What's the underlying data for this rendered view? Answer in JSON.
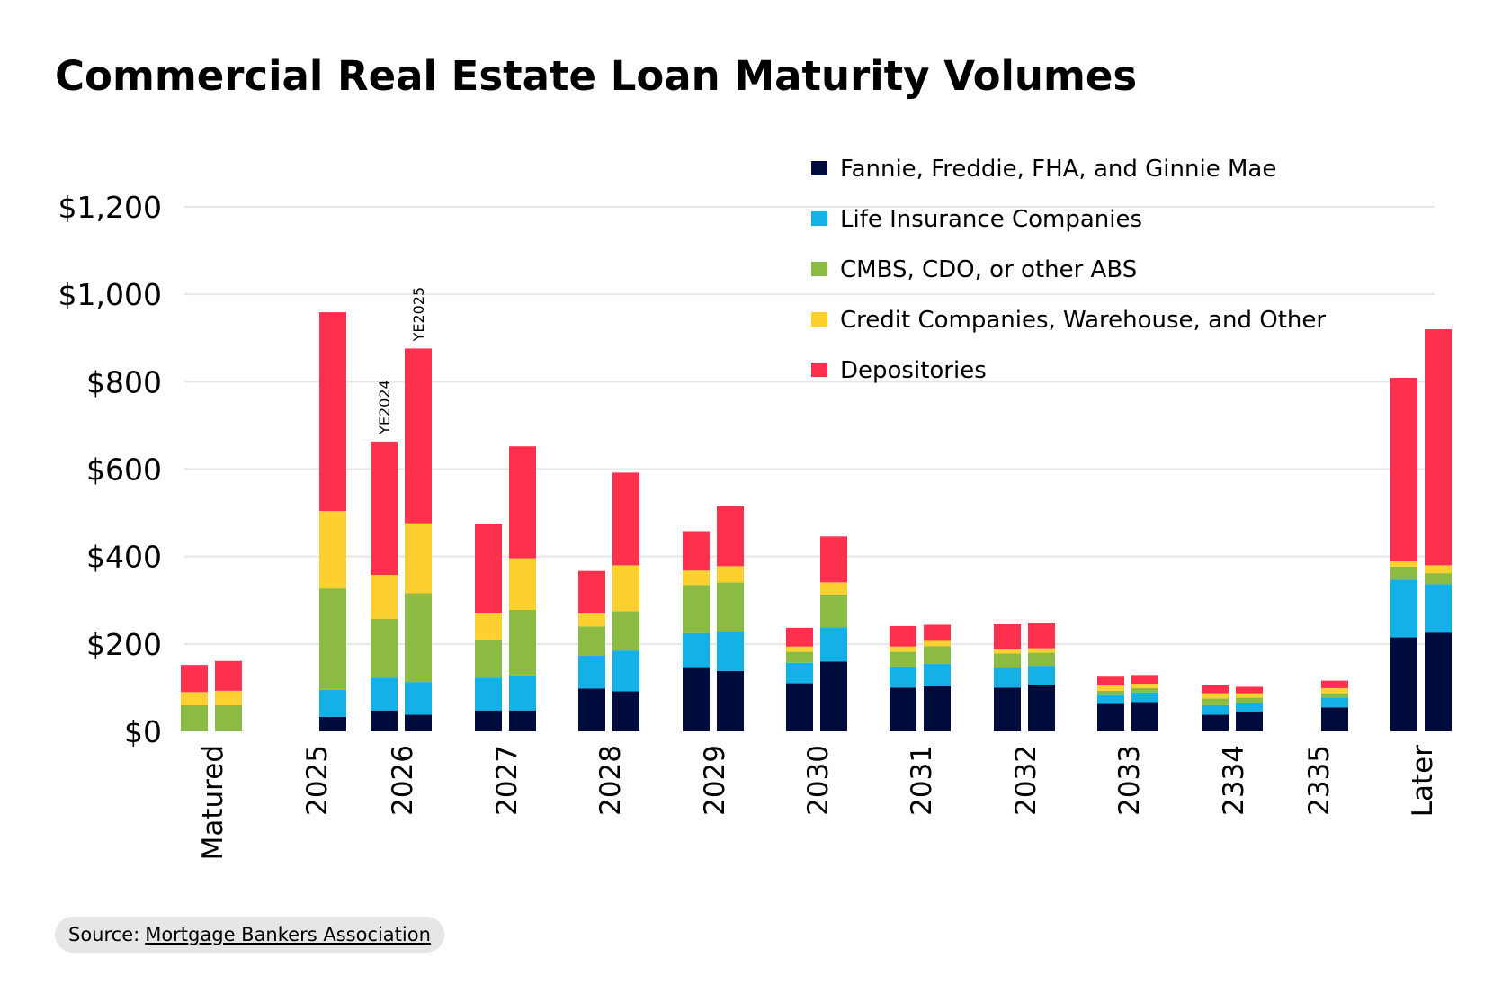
{
  "chart_data": {
    "type": "bar",
    "stacked": true,
    "title": "Commercial Real Estate Loan Maturity Volumes",
    "categories": [
      "Matured",
      "2025",
      "2026",
      "2027",
      "2028",
      "2029",
      "2030",
      "2031",
      "2032",
      "2033",
      "2334",
      "2335",
      "Later"
    ],
    "bar_groups": [
      "YE2024",
      "YE2025"
    ],
    "ylim": [
      0,
      1200
    ],
    "yticks": [
      0,
      200,
      400,
      600,
      800,
      1000,
      1200
    ],
    "ytick_labels": [
      "$0",
      "$200",
      "$400",
      "$600",
      "$800",
      "$1,000",
      "$1,200"
    ],
    "grid": true,
    "legend_position": "top-right",
    "series": [
      {
        "name": "Fannie, Freddie, FHA, and Ginnie Mae",
        "color": "#000c3b",
        "ye2024": [
          0,
          0,
          48,
          48,
          98,
          145,
          110,
          100,
          100,
          63,
          38,
          0,
          215
        ],
        "ye2025": [
          0,
          33,
          38,
          48,
          92,
          138,
          160,
          103,
          107,
          67,
          45,
          55,
          226
        ]
      },
      {
        "name": "Life Insurance Companies",
        "color": "#14b1e7",
        "ye2024": [
          0,
          0,
          75,
          75,
          75,
          80,
          47,
          47,
          45,
          20,
          22,
          0,
          132
        ],
        "ye2025": [
          0,
          62,
          75,
          80,
          93,
          90,
          78,
          52,
          43,
          22,
          20,
          22,
          111
        ]
      },
      {
        "name": "CMBS, CDO, or other ABS",
        "color": "#8cbb43",
        "ye2024": [
          60,
          0,
          135,
          85,
          67,
          110,
          25,
          35,
          33,
          10,
          15,
          0,
          30
        ],
        "ye2025": [
          60,
          232,
          203,
          150,
          90,
          113,
          75,
          40,
          30,
          10,
          12,
          10,
          25
        ]
      },
      {
        "name": "Credit Companies, Warehouse, and Other",
        "color": "#fcd02e",
        "ye2024": [
          30,
          0,
          100,
          62,
          30,
          33,
          12,
          12,
          10,
          12,
          12,
          0,
          12
        ],
        "ye2025": [
          33,
          177,
          160,
          118,
          105,
          37,
          28,
          12,
          10,
          10,
          10,
          12,
          18
        ]
      },
      {
        "name": "Depositories",
        "color": "#fd304e",
        "ye2024": [
          62,
          0,
          305,
          205,
          97,
          90,
          43,
          47,
          57,
          20,
          18,
          0,
          420
        ],
        "ye2025": [
          68,
          455,
          400,
          256,
          212,
          137,
          105,
          37,
          57,
          20,
          15,
          17,
          540
        ]
      }
    ],
    "annotations": [
      {
        "text": "YE2024",
        "category": "2026",
        "group": "YE2024"
      },
      {
        "text": "YE2025",
        "category": "2026",
        "group": "YE2025"
      }
    ]
  },
  "source": {
    "label": "Source:",
    "link_text": "Mortgage Bankers Association"
  }
}
